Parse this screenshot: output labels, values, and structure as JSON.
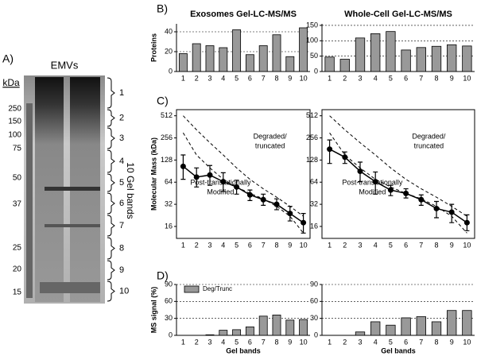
{
  "gel": {
    "panel": "A)",
    "title": "EMVs",
    "unit": "kDa",
    "markers": [
      "250",
      "150",
      "100",
      "75",
      "50",
      "37",
      "25",
      "20",
      "15"
    ],
    "bands": [
      "1",
      "2",
      "3",
      "4",
      "5",
      "6",
      "7",
      "8",
      "9",
      "10"
    ],
    "side_label": "10 Gel bands"
  },
  "chart_data": [
    {
      "type": "bar",
      "panel": "B)",
      "title": "Exosomes Gel-LC-MS/MS",
      "y_label": "Proteins",
      "categories": [
        "1",
        "2",
        "3",
        "4",
        "5",
        "6",
        "7",
        "8",
        "9",
        "10"
      ],
      "series": [
        {
          "color": "#999999",
          "values": [
            18,
            28,
            26,
            24,
            42,
            17,
            26,
            37,
            15,
            44
          ]
        }
      ],
      "ylim": [
        0,
        48
      ],
      "yticks": [
        0,
        20,
        40
      ],
      "grid": true
    },
    {
      "type": "bar",
      "title": "Whole-Cell Gel-LC-MS/MS",
      "categories": [
        "1",
        "2",
        "3",
        "4",
        "5",
        "6",
        "7",
        "8",
        "9",
        "10"
      ],
      "series": [
        {
          "color": "#999999",
          "values": [
            47,
            40,
            109,
            123,
            130,
            70,
            78,
            82,
            87,
            83
          ]
        }
      ],
      "ylim": [
        0,
        155
      ],
      "yticks": [
        0,
        50,
        100,
        150
      ],
      "grid": true
    },
    {
      "type": "line",
      "panel": "C)",
      "y_label": "Molecular Mass (kDa)",
      "log_y": true,
      "categories": [
        "1",
        "2",
        "3",
        "4",
        "5",
        "6",
        "7",
        "8",
        "9",
        "10"
      ],
      "series": [
        {
          "color": "#000000",
          "values": [
            105,
            75,
            80,
            65,
            55,
            43,
            37,
            32,
            24,
            18
          ],
          "lower": [
            70,
            55,
            58,
            48,
            44,
            36,
            31,
            27,
            19,
            13
          ],
          "upper": [
            150,
            100,
            108,
            86,
            68,
            50,
            44,
            38,
            30,
            24
          ]
        },
        {
          "color": "#000000",
          "dashed": true,
          "values": [
            512,
            330,
            220,
            150,
            100,
            70,
            52,
            40,
            30,
            22
          ]
        },
        {
          "color": "#000000",
          "dashed": true,
          "values": [
            300,
            150,
            100,
            70,
            55,
            45,
            38,
            30,
            22,
            13
          ]
        }
      ],
      "annotations": [
        [
          "Degraded/",
          "truncated"
        ],
        [
          "Post-translationally",
          "Modified"
        ]
      ],
      "ylim": [
        11,
        620
      ],
      "yticks": [
        16,
        32,
        64,
        128,
        256,
        512
      ]
    },
    {
      "type": "line",
      "log_y": true,
      "categories": [
        "1",
        "2",
        "3",
        "4",
        "5",
        "6",
        "7",
        "8",
        "9",
        "10"
      ],
      "series": [
        {
          "color": "#000000",
          "values": [
            180,
            140,
            90,
            65,
            50,
            45,
            37,
            28,
            25,
            18
          ],
          "lower": [
            115,
            115,
            65,
            44,
            42,
            39,
            31,
            21,
            18,
            14
          ],
          "upper": [
            240,
            165,
            120,
            88,
            58,
            52,
            43,
            35,
            32,
            23
          ]
        },
        {
          "color": "#000000",
          "dashed": true,
          "values": [
            512,
            330,
            220,
            150,
            100,
            70,
            52,
            40,
            30,
            22
          ]
        },
        {
          "color": "#000000",
          "dashed": true,
          "values": [
            300,
            150,
            100,
            70,
            55,
            45,
            38,
            30,
            22,
            13
          ]
        }
      ],
      "annotations": [
        [
          "Degraded/",
          "truncated"
        ],
        [
          "Post-translationally",
          "Modified"
        ]
      ],
      "ylim": [
        11,
        620
      ],
      "yticks": [
        16,
        32,
        64,
        128,
        256,
        512
      ]
    },
    {
      "type": "bar",
      "panel": "D)",
      "y_label": "MS signal (%)",
      "x_label": "Gel bands",
      "categories": [
        "1",
        "2",
        "3",
        "4",
        "5",
        "6",
        "7",
        "8",
        "9",
        "10"
      ],
      "series": [
        {
          "name": "Deg/Trunc",
          "color": "#999999",
          "values": [
            0,
            0,
            1,
            9,
            10,
            15,
            34,
            36,
            27,
            28
          ]
        }
      ],
      "legend": "upper-left",
      "ylim": [
        0,
        90
      ],
      "yticks": [
        0,
        30,
        60,
        90
      ],
      "grid": true
    },
    {
      "type": "bar",
      "x_label": "Gel bands",
      "categories": [
        "1",
        "2",
        "3",
        "4",
        "5",
        "6",
        "7",
        "8",
        "9",
        "10"
      ],
      "series": [
        {
          "color": "#999999",
          "values": [
            0,
            0,
            6,
            24,
            18,
            31,
            33,
            24,
            44,
            44
          ]
        }
      ],
      "ylim": [
        0,
        90
      ],
      "yticks": [
        0,
        30,
        60,
        90
      ],
      "grid": true
    }
  ]
}
